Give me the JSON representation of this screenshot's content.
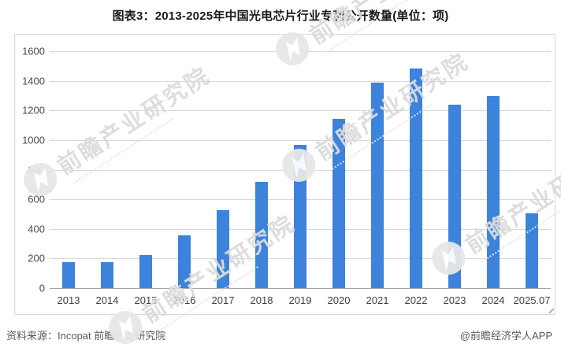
{
  "title": "图表3：2013-2025年中国光电芯片行业专利公开数量(单位：项)",
  "footer": {
    "source": "资料来源：Incopat 前瞻产业研究院",
    "credit": "@前瞻经济学人APP"
  },
  "watermark": {
    "text": "前瞻产业研究院"
  },
  "colors": {
    "bar": "#3D82DB",
    "gridline": "#D9D9D9",
    "axis_line": "#A6A6A6",
    "tick_label": "#4A4A4A",
    "box_border": "#D9D9D9",
    "watermark": "#DCDCDC"
  },
  "chart_data": {
    "type": "bar",
    "title": "图表3：2013-2025年中国光电芯片行业专利公开数量(单位：项)",
    "categories": [
      "2013",
      "2014",
      "2015",
      "2016",
      "2017",
      "2018",
      "2019",
      "2020",
      "2021",
      "2022",
      "2023",
      "2024",
      "2025.07"
    ],
    "values": [
      175,
      175,
      225,
      355,
      525,
      720,
      970,
      1145,
      1385,
      1485,
      1240,
      1295,
      505
    ],
    "xlabel": "",
    "ylabel": "",
    "unit": "项",
    "ylim": [
      0,
      1600
    ],
    "ytick_interval": 200,
    "yticks": [
      0,
      200,
      400,
      600,
      800,
      1000,
      1200,
      1400,
      1600
    ],
    "grid": true,
    "legend": false,
    "bar_color": "#3D82DB"
  }
}
